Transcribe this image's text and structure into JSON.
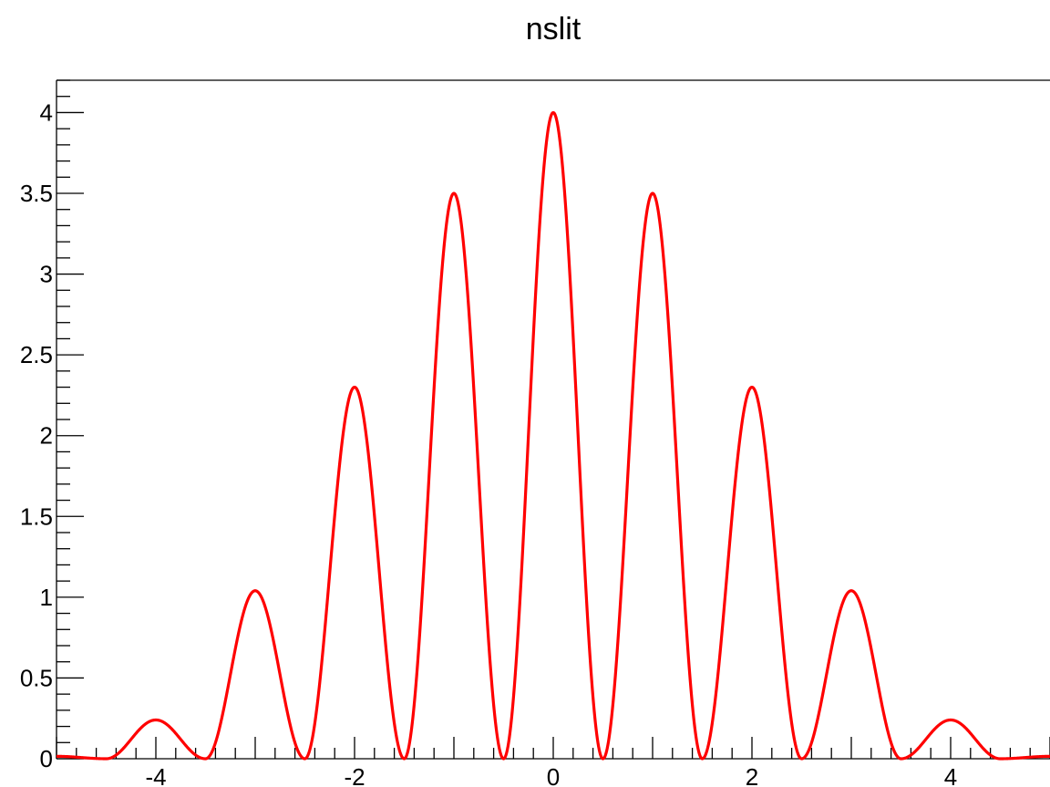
{
  "chart_data": {
    "type": "line",
    "title": "nslit",
    "xlabel": "",
    "ylabel": "",
    "xlim": [
      -5,
      5
    ],
    "ylim": [
      0,
      4.2
    ],
    "grid": false,
    "x_ticks": [
      -4,
      -2,
      0,
      2,
      4
    ],
    "x_tick_labels": [
      "-4",
      "-2",
      "0",
      "2",
      "4"
    ],
    "y_ticks": [
      0,
      0.5,
      1,
      1.5,
      2,
      2.5,
      3,
      3.5,
      4
    ],
    "y_tick_labels": [
      "0",
      "0.5",
      "1",
      "1.5",
      "2",
      "2.5",
      "3",
      "3.5",
      "4"
    ],
    "series": [
      {
        "color": "#ff0000",
        "peaks": [
          {
            "x": -3.9,
            "y": 0.24
          },
          {
            "x": -2.95,
            "y": 1.04
          },
          {
            "x": -1.97,
            "y": 2.3
          },
          {
            "x": -0.98,
            "y": 3.5
          },
          {
            "x": 0,
            "y": 4.0
          },
          {
            "x": 0.98,
            "y": 3.5
          },
          {
            "x": 1.97,
            "y": 2.3
          },
          {
            "x": 2.95,
            "y": 1.04
          },
          {
            "x": 3.9,
            "y": 0.24
          }
        ],
        "zeros": [
          -3.5,
          -2.5,
          -1.5,
          -0.5,
          0.5,
          1.5,
          2.5,
          3.5
        ]
      }
    ]
  }
}
